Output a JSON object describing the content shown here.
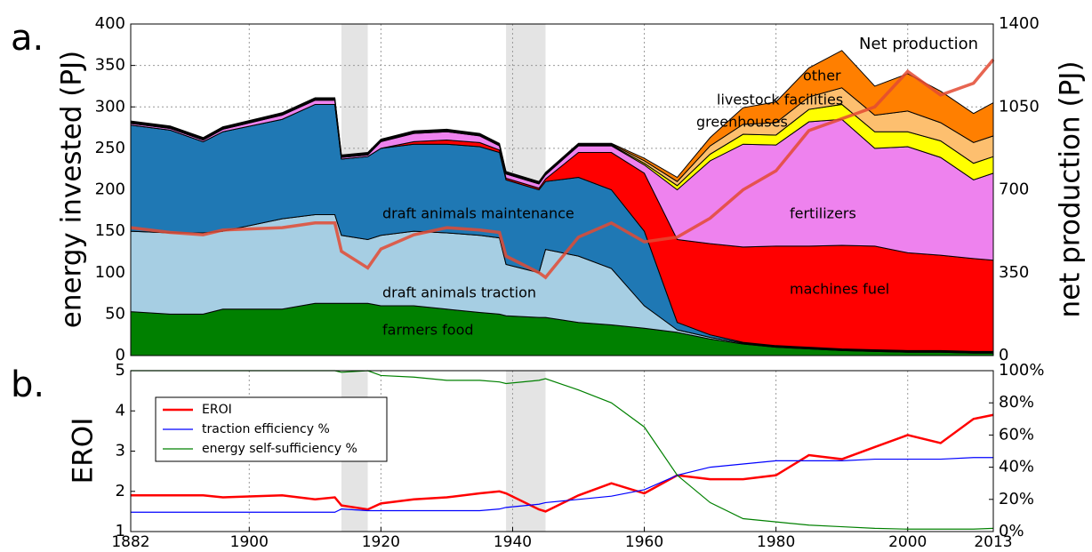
{
  "chart_data": [
    {
      "type": "stacked_area",
      "label": "a.",
      "ylabel": "energy invested (PJ)",
      "y2label": "net production (PJ)",
      "x": [
        1882,
        1888,
        1893,
        1896,
        1905,
        1910,
        1913,
        1914,
        1918,
        1920,
        1925,
        1930,
        1935,
        1938,
        1939,
        1944,
        1945,
        1950,
        1955,
        1960,
        1965,
        1970,
        1975,
        1980,
        1985,
        1990,
        1995,
        2000,
        2005,
        2010,
        2013
      ],
      "xlim": [
        1882,
        2013
      ],
      "ylim": [
        0,
        400
      ],
      "yticks": [
        0,
        50,
        100,
        150,
        200,
        250,
        300,
        350,
        400
      ],
      "y2lim": [
        0,
        1400
      ],
      "y2ticks": [
        0,
        350,
        700,
        1050,
        1400
      ],
      "grid": true,
      "shaded": [
        [
          1914,
          1918
        ],
        [
          1939,
          1945
        ]
      ],
      "series": [
        {
          "name": "farmers food",
          "color": "#008000",
          "values": [
            53,
            50,
            50,
            56,
            56,
            63,
            63,
            63,
            63,
            60,
            60,
            56,
            52,
            50,
            48,
            46,
            46,
            40,
            37,
            33,
            28,
            20,
            14,
            10,
            8,
            6,
            5,
            4,
            4,
            3,
            3
          ]
        },
        {
          "name": "draft animals traction",
          "color": "#a6cee3",
          "values": [
            97,
            98,
            98,
            94,
            109,
            107,
            107,
            82,
            77,
            85,
            90,
            92,
            93,
            92,
            62,
            54,
            82,
            80,
            68,
            27,
            3,
            2,
            1,
            1,
            1,
            1,
            1,
            1,
            1,
            1,
            1
          ]
        },
        {
          "name": "draft animals maintenance",
          "color": "#1f78b4",
          "values": [
            128,
            124,
            110,
            120,
            120,
            133,
            133,
            92,
            100,
            105,
            105,
            107,
            107,
            103,
            102,
            100,
            82,
            95,
            95,
            90,
            9,
            3,
            1,
            1,
            1,
            1,
            1,
            1,
            1,
            1,
            1
          ]
        },
        {
          "name": "machines fuel",
          "color": "#ff0000",
          "values": [
            0,
            0,
            0,
            0,
            0,
            0,
            0,
            0,
            0,
            0,
            3,
            5,
            5,
            3,
            2,
            2,
            3,
            30,
            45,
            70,
            100,
            110,
            115,
            120,
            122,
            125,
            125,
            118,
            115,
            112,
            110
          ]
        },
        {
          "name": "fertilizers",
          "color": "#ee82ee",
          "values": [
            2,
            2,
            2,
            3,
            5,
            5,
            5,
            2,
            2,
            8,
            10,
            10,
            8,
            5,
            5,
            5,
            5,
            8,
            8,
            10,
            60,
            100,
            124,
            122,
            150,
            152,
            118,
            128,
            118,
            95,
            105
          ]
        },
        {
          "name": "greenhouses",
          "color": "#ffff00",
          "values": [
            1,
            1,
            1,
            1,
            1,
            1,
            1,
            1,
            1,
            1,
            1,
            1,
            1,
            1,
            1,
            1,
            1,
            1,
            1,
            2,
            5,
            8,
            12,
            12,
            15,
            18,
            20,
            18,
            20,
            20,
            20
          ]
        },
        {
          "name": "livestock facilities",
          "color": "#fdbf6f",
          "values": [
            1,
            1,
            1,
            1,
            1,
            1,
            1,
            1,
            1,
            1,
            1,
            1,
            1,
            1,
            1,
            1,
            1,
            1,
            1,
            3,
            5,
            10,
            12,
            15,
            15,
            20,
            20,
            25,
            22,
            25,
            25
          ]
        },
        {
          "name": "other",
          "color": "#ff7f00",
          "values": [
            1,
            1,
            1,
            1,
            1,
            1,
            1,
            1,
            1,
            1,
            1,
            1,
            1,
            1,
            1,
            1,
            1,
            1,
            1,
            3,
            5,
            10,
            20,
            25,
            35,
            45,
            35,
            45,
            38,
            35,
            40
          ]
        },
        {
          "name": "Net production",
          "color": "#e34a33",
          "axis": "y2",
          "values": [
            540,
            520,
            510,
            530,
            540,
            560,
            560,
            440,
            370,
            450,
            510,
            540,
            530,
            520,
            420,
            350,
            330,
            500,
            560,
            480,
            500,
            580,
            700,
            780,
            950,
            1000,
            1050,
            1200,
            1100,
            1150,
            1250
          ]
        }
      ]
    },
    {
      "type": "line",
      "label": "b.",
      "ylabel": "EROI",
      "legend": "upper left",
      "x": [
        1882,
        1888,
        1893,
        1896,
        1905,
        1910,
        1913,
        1914,
        1918,
        1920,
        1925,
        1930,
        1935,
        1938,
        1939,
        1944,
        1945,
        1950,
        1955,
        1960,
        1965,
        1970,
        1975,
        1980,
        1985,
        1990,
        1995,
        2000,
        2005,
        2010,
        2013
      ],
      "xlim": [
        1882,
        2013
      ],
      "xticks": [
        1882,
        1900,
        1920,
        1940,
        1960,
        1980,
        2000,
        2013
      ],
      "ylim": [
        1,
        5
      ],
      "yticks": [
        1,
        2,
        3,
        4,
        5
      ],
      "y2lim": [
        0,
        100
      ],
      "y2ticks": [
        {
          "value": 0,
          "label": "0%"
        },
        {
          "value": 20,
          "label": "20%"
        },
        {
          "value": 40,
          "label": "40%"
        },
        {
          "value": 60,
          "label": "60%"
        },
        {
          "value": 80,
          "label": "80%"
        },
        {
          "value": 100,
          "label": "100%"
        }
      ],
      "series": [
        {
          "name": "EROI",
          "color": "#ff0000",
          "values": [
            1.9,
            1.9,
            1.9,
            1.85,
            1.9,
            1.8,
            1.85,
            1.65,
            1.55,
            1.7,
            1.8,
            1.85,
            1.95,
            2.0,
            1.95,
            1.55,
            1.5,
            1.9,
            2.2,
            1.95,
            2.4,
            2.3,
            2.3,
            2.4,
            2.9,
            2.8,
            3.1,
            3.4,
            3.2,
            3.8,
            3.9
          ]
        },
        {
          "name": "traction efficiency %",
          "color": "#0000ff",
          "axis": "y2",
          "values": [
            12,
            12,
            12,
            12,
            12,
            12,
            12,
            14,
            13,
            13,
            13,
            13,
            13,
            14,
            15,
            17,
            18,
            20,
            22,
            26,
            35,
            40,
            42,
            44,
            44,
            44,
            45,
            45,
            45,
            46,
            46
          ]
        },
        {
          "name": "energy self-sufficiency %",
          "color": "#008000",
          "axis": "y2",
          "values": [
            100,
            100,
            100,
            100,
            100,
            100,
            100,
            99,
            100,
            97,
            96,
            94,
            94,
            93,
            92,
            94,
            95,
            88,
            80,
            65,
            35,
            18,
            8,
            6,
            4,
            3,
            2,
            1.5,
            1.5,
            1.5,
            2
          ]
        }
      ]
    }
  ]
}
